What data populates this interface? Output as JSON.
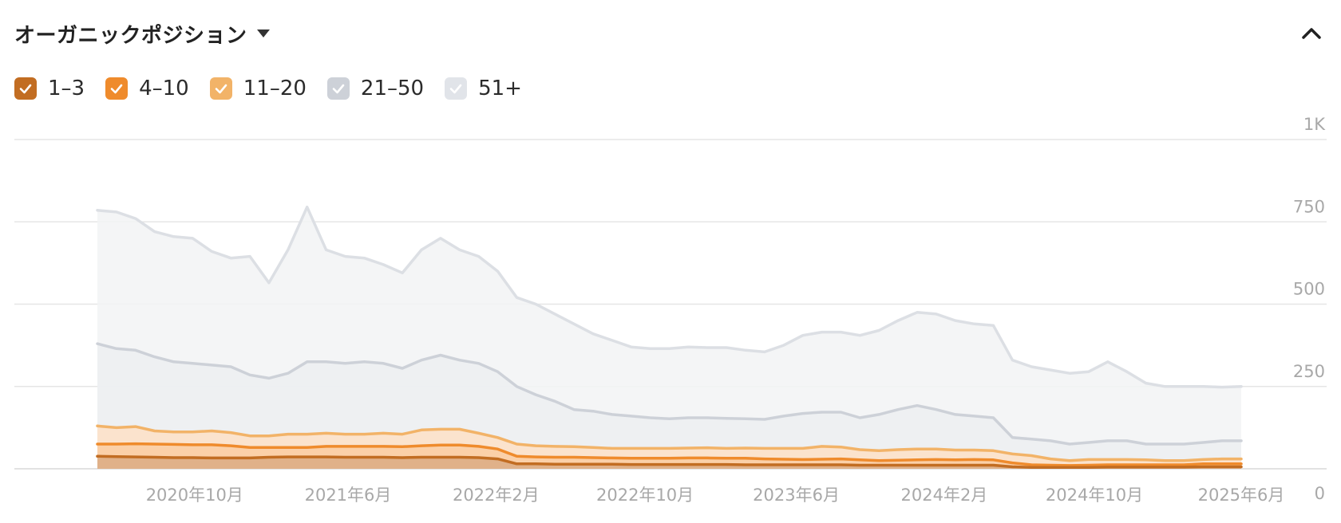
{
  "header": {
    "title": "オーガニックポジション"
  },
  "legend": [
    {
      "label": "1–3",
      "color": "#c26d22"
    },
    {
      "label": "4–10",
      "color": "#ef8b2c"
    },
    {
      "label": "11–20",
      "color": "#f2b368"
    },
    {
      "label": "21–50",
      "color": "#cdd1d8"
    },
    {
      "label": "51+",
      "color": "#e1e4e9"
    }
  ],
  "chart_data": {
    "type": "area",
    "stacked": false,
    "grid": true,
    "y_axis_position": "right",
    "ylim": [
      0,
      1000
    ],
    "y_ticks": [
      {
        "value": 0,
        "label": "0"
      },
      {
        "value": 250,
        "label": "250"
      },
      {
        "value": 500,
        "label": "500"
      },
      {
        "value": 750,
        "label": "750"
      },
      {
        "value": 1000,
        "label": "1K"
      }
    ],
    "x_ticks": [
      {
        "x": 0.045,
        "label": "2020年10月"
      },
      {
        "x": 0.185,
        "label": "2021年6月"
      },
      {
        "x": 0.32,
        "label": "2022年2月"
      },
      {
        "x": 0.456,
        "label": "2022年10月"
      },
      {
        "x": 0.594,
        "label": "2023年6月"
      },
      {
        "x": 0.729,
        "label": "2024年2月"
      },
      {
        "x": 0.866,
        "label": "2024年10月"
      },
      {
        "x": 1.0,
        "label": "2025年6月"
      }
    ],
    "series": [
      {
        "name": "51+",
        "line_color": "#dcdfe4",
        "fill_color": "#f2f3f5",
        "values": [
          785,
          780,
          760,
          720,
          705,
          700,
          660,
          640,
          645,
          565,
          665,
          795,
          665,
          645,
          640,
          620,
          595,
          665,
          700,
          665,
          645,
          600,
          520,
          500,
          470,
          440,
          410,
          390,
          370,
          365,
          365,
          370,
          368,
          368,
          360,
          355,
          375,
          405,
          415,
          415,
          405,
          420,
          450,
          475,
          470,
          450,
          440,
          435,
          330,
          310,
          300,
          290,
          295,
          325,
          295,
          260,
          250,
          250,
          250,
          248,
          250
        ]
      },
      {
        "name": "21–50",
        "line_color": "#cdd1d8",
        "fill_color": "#eceef1",
        "values": [
          380,
          365,
          360,
          340,
          325,
          320,
          315,
          310,
          285,
          275,
          290,
          325,
          325,
          320,
          325,
          320,
          305,
          330,
          345,
          330,
          320,
          295,
          250,
          225,
          205,
          180,
          175,
          165,
          160,
          155,
          152,
          155,
          155,
          153,
          152,
          150,
          160,
          168,
          172,
          172,
          155,
          165,
          180,
          192,
          180,
          165,
          160,
          155,
          95,
          90,
          85,
          75,
          80,
          85,
          85,
          75,
          75,
          75,
          80,
          85,
          85
        ]
      },
      {
        "name": "11–20",
        "line_color": "#f2b368",
        "fill_color": "#fde1c7",
        "values": [
          130,
          125,
          128,
          115,
          112,
          112,
          115,
          110,
          100,
          100,
          105,
          105,
          108,
          105,
          105,
          108,
          105,
          118,
          120,
          120,
          108,
          95,
          75,
          70,
          68,
          67,
          65,
          62,
          62,
          62,
          62,
          63,
          64,
          62,
          63,
          62,
          62,
          62,
          68,
          66,
          58,
          55,
          58,
          60,
          60,
          57,
          57,
          55,
          45,
          40,
          30,
          25,
          28,
          28,
          28,
          27,
          25,
          25,
          28,
          30,
          30
        ]
      },
      {
        "name": "4–10",
        "line_color": "#ef8b2c",
        "fill_color": "#fbd0a8",
        "values": [
          75,
          75,
          76,
          75,
          74,
          73,
          73,
          70,
          65,
          65,
          65,
          65,
          68,
          68,
          68,
          68,
          67,
          70,
          72,
          72,
          68,
          60,
          38,
          36,
          35,
          35,
          34,
          33,
          32,
          32,
          32,
          33,
          33,
          32,
          32,
          30,
          29,
          28,
          29,
          30,
          27,
          25,
          26,
          27,
          28,
          27,
          28,
          27,
          18,
          12,
          11,
          10,
          11,
          12,
          12,
          12,
          12,
          12,
          15,
          15,
          15
        ]
      },
      {
        "name": "1–3",
        "line_color": "#c26d22",
        "fill_color": "#e0b189",
        "values": [
          38,
          37,
          36,
          35,
          34,
          34,
          33,
          33,
          33,
          35,
          36,
          36,
          36,
          35,
          35,
          35,
          34,
          35,
          35,
          35,
          34,
          30,
          15,
          15,
          14,
          14,
          14,
          14,
          13,
          13,
          13,
          13,
          13,
          13,
          12,
          12,
          12,
          12,
          12,
          12,
          11,
          11,
          11,
          11,
          11,
          11,
          11,
          11,
          6,
          4,
          4,
          4,
          4,
          5,
          5,
          5,
          5,
          5,
          6,
          6,
          6
        ]
      }
    ]
  }
}
